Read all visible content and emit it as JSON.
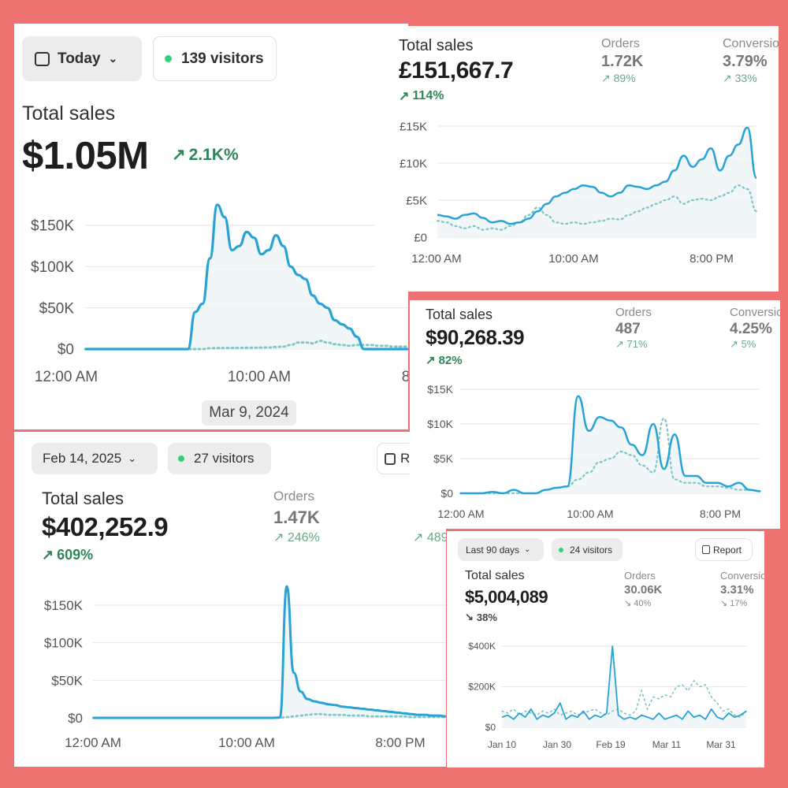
{
  "colors": {
    "background": "#ee7272",
    "line": "#29a3d6",
    "dotted": "#7fc6c6",
    "positive": "#2f855a"
  },
  "panel1": {
    "date_pill": "Today",
    "visitors_pill": "139 visitors",
    "title": "Total sales",
    "value": "$1.05M",
    "change": "2.1K%",
    "date_tooltip": "Mar 9, 2024",
    "chart_data": {
      "type": "line",
      "y_ticks": [
        "$150K",
        "$100K",
        "$50K",
        "$0"
      ],
      "x_ticks": [
        "12:00 AM",
        "10:00 AM",
        "8"
      ],
      "ylim": [
        0,
        150000
      ],
      "series": [
        {
          "values": [
            0,
            0,
            0,
            0,
            0,
            0,
            0,
            0,
            0,
            0,
            0,
            0,
            0,
            0,
            0,
            45000,
            55000,
            110000,
            175000,
            160000,
            120000,
            125000,
            142000,
            135000,
            115000,
            120000,
            138000,
            125000,
            100000,
            90000,
            85000,
            65000,
            55000,
            50000,
            35000,
            30000,
            25000,
            15000,
            0,
            0,
            0,
            0,
            0,
            0,
            0
          ]
        },
        {
          "values": [
            0,
            0,
            0,
            0,
            0,
            0,
            0,
            0,
            0,
            0,
            0,
            0,
            0,
            0,
            0,
            0,
            0,
            1000,
            1200,
            1300,
            1400,
            1500,
            1600,
            1700,
            1800,
            2000,
            2500,
            3000,
            5000,
            8000,
            8000,
            7000,
            10000,
            8000,
            6000,
            5000,
            4000,
            5000,
            5000,
            5000,
            4000,
            4000,
            3000,
            3000,
            3000
          ]
        }
      ]
    }
  },
  "panel2": {
    "title": "Total sales",
    "value": "£151,667.7",
    "change": "114%",
    "orders_label": "Orders",
    "orders_value": "1.72K",
    "orders_change": "89%",
    "conv_label": "Conversio",
    "conv_value": "3.79%",
    "conv_change": "33%",
    "chart_data": {
      "type": "line",
      "y_ticks": [
        "£15K",
        "£10K",
        "£5K",
        "£0"
      ],
      "x_ticks": [
        "12:00 AM",
        "10:00 AM",
        "8:00 PM"
      ],
      "ylim": [
        0,
        15000
      ],
      "series": [
        {
          "values": [
            3000,
            2800,
            2500,
            3000,
            3200,
            2600,
            2000,
            2200,
            1800,
            2000,
            2500,
            3500,
            4500,
            5500,
            6000,
            6500,
            7000,
            6800,
            6000,
            5500,
            6000,
            7000,
            6800,
            6500,
            7000,
            7500,
            9000,
            11000,
            9500,
            10500,
            12000,
            9000,
            11000,
            12500,
            14800,
            8000
          ]
        },
        {
          "values": [
            2200,
            2000,
            1500,
            1200,
            1500,
            1000,
            1200,
            1000,
            1500,
            2000,
            3000,
            4000,
            3000,
            2000,
            1800,
            2000,
            1800,
            2000,
            2200,
            2500,
            2400,
            3000,
            3500,
            4000,
            4500,
            5000,
            5500,
            4500,
            5000,
            5200,
            5000,
            5500,
            6000,
            7000,
            6500,
            3500
          ]
        }
      ]
    }
  },
  "panel3": {
    "title": "Total sales",
    "value": "$90,268.39",
    "change": "82%",
    "orders_label": "Orders",
    "orders_value": "487",
    "orders_change": "71%",
    "conv_label": "Conversio",
    "conv_value": "4.25%",
    "conv_change": "5%",
    "chart_data": {
      "type": "line",
      "y_ticks": [
        "$15K",
        "$10K",
        "$5K",
        "$0"
      ],
      "x_ticks": [
        "12:00 AM",
        "10:00 AM",
        "8:00 PM"
      ],
      "ylim": [
        0,
        15000
      ],
      "series": [
        {
          "values": [
            0,
            0,
            0,
            200,
            0,
            500,
            0,
            0,
            500,
            800,
            1000,
            14000,
            9000,
            11000,
            10500,
            9500,
            7000,
            5500,
            10000,
            3500,
            8500,
            2500,
            2500,
            1500,
            1500,
            1000,
            1500,
            500,
            300
          ]
        },
        {
          "values": [
            0,
            0,
            0,
            0,
            0,
            0,
            0,
            0,
            500,
            800,
            1000,
            2000,
            3000,
            4500,
            5000,
            6000,
            5500,
            4000,
            3000,
            10800,
            2000,
            1500,
            1500,
            1000,
            1000,
            800,
            500,
            500,
            300
          ]
        }
      ]
    }
  },
  "panel4": {
    "date_pill": "Feb 14, 2025",
    "visitors_pill": "27 visitors",
    "report_label": "R",
    "title": "Total sales",
    "value": "$402,252.9",
    "change": "609%",
    "orders_label": "Orders",
    "orders_value": "1.47K",
    "orders_change": "246%",
    "conv_change": "489",
    "chart_data": {
      "type": "line",
      "y_ticks": [
        "$150K",
        "$100K",
        "$50K",
        "$0"
      ],
      "x_ticks": [
        "12:00 AM",
        "10:00 AM",
        "8:00 PM"
      ],
      "ylim": [
        0,
        150000
      ],
      "series": [
        {
          "values": [
            0,
            0,
            0,
            0,
            0,
            0,
            0,
            0,
            0,
            0,
            0,
            0,
            0,
            0,
            0,
            0,
            0,
            0,
            0,
            0,
            0,
            0,
            0,
            0,
            0,
            0,
            0,
            500,
            175000,
            60000,
            35000,
            25000,
            22000,
            20000,
            18000,
            17000,
            15000,
            14000,
            13000,
            12000,
            11000,
            10000,
            9000,
            8000,
            7000,
            6000,
            5000,
            4000,
            4000,
            3000,
            3000,
            2000
          ]
        },
        {
          "values": [
            0,
            0,
            0,
            0,
            0,
            0,
            0,
            0,
            0,
            0,
            0,
            0,
            0,
            0,
            0,
            0,
            0,
            0,
            0,
            0,
            0,
            0,
            0,
            0,
            0,
            0,
            0,
            0,
            1000,
            2000,
            3000,
            4000,
            5000,
            5000,
            4000,
            4000,
            4000,
            3000,
            3000,
            3000,
            2000,
            2000,
            2000,
            2000,
            2000,
            2000,
            1000,
            1000,
            1000,
            1000,
            1000,
            1000
          ]
        }
      ]
    }
  },
  "panel5": {
    "date_pill": "Last 90 days",
    "visitors_pill": "24 visitors",
    "report_label": "Report",
    "title": "Total sales",
    "value": "$5,004,089",
    "change": "38%",
    "orders_label": "Orders",
    "orders_value": "30.06K",
    "orders_change": "40%",
    "conv_label": "Conversio",
    "conv_value": "3.31%",
    "conv_change": "17%",
    "chart_data": {
      "type": "line",
      "y_ticks": [
        "$400K",
        "$200K",
        "$0"
      ],
      "x_ticks": [
        "Jan 10",
        "Jan 30",
        "Feb 19",
        "Mar 11",
        "Mar 31"
      ],
      "ylim": [
        0,
        400000
      ],
      "series": [
        {
          "values": [
            50000,
            60000,
            40000,
            70000,
            50000,
            90000,
            40000,
            60000,
            50000,
            70000,
            120000,
            40000,
            60000,
            50000,
            80000,
            40000,
            60000,
            50000,
            70000,
            400000,
            60000,
            40000,
            50000,
            40000,
            60000,
            50000,
            40000,
            70000,
            40000,
            50000,
            60000,
            40000,
            80000,
            50000,
            60000,
            40000,
            90000,
            50000,
            40000,
            70000,
            50000,
            60000,
            80000
          ]
        },
        {
          "values": [
            80000,
            70000,
            90000,
            60000,
            80000,
            70000,
            60000,
            80000,
            70000,
            90000,
            60000,
            70000,
            80000,
            60000,
            70000,
            80000,
            90000,
            70000,
            60000,
            80000,
            90000,
            70000,
            60000,
            80000,
            180000,
            90000,
            150000,
            140000,
            160000,
            150000,
            200000,
            210000,
            180000,
            230000,
            200000,
            210000,
            150000,
            120000,
            80000,
            90000,
            60000,
            50000,
            80000
          ]
        }
      ]
    }
  }
}
